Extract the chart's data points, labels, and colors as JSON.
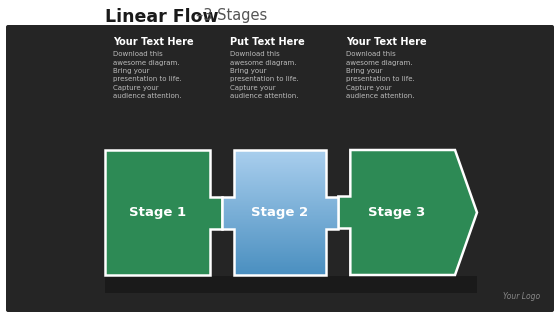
{
  "title_bold": "Linear Flow",
  "title_light": "–3 Stages",
  "background_outer": "#ffffff",
  "background_inner": "#252525",
  "stage1_color": "#2d8a55",
  "stage2_color_top": "#aacfee",
  "stage2_color_bot": "#4a8fc0",
  "stage3_color": "#2d8a55",
  "border_color": "#ffffff",
  "label_color": "#ffffff",
  "header_color": "#ffffff",
  "body_color": "#bbbbbb",
  "logo_color": "#888888",
  "stage_labels": [
    "Stage 1",
    "Stage 2",
    "Stage 3"
  ],
  "text_headers": [
    "Your Text Here",
    "Put Text Here",
    "Your Text Here"
  ],
  "text_body": [
    "Download this\nawesome diagram.\nBring your\npresentation to life.\nCapture your\naudience attention.",
    "Download this\nawesome diagram.\nBring your\npresentation to life.\nCapture your\naudience attention.",
    "Download this\nawesome diagram.\nBring your\npresentation to life.\nCapture your\naudience attention."
  ],
  "logo_text": "Your Logo"
}
